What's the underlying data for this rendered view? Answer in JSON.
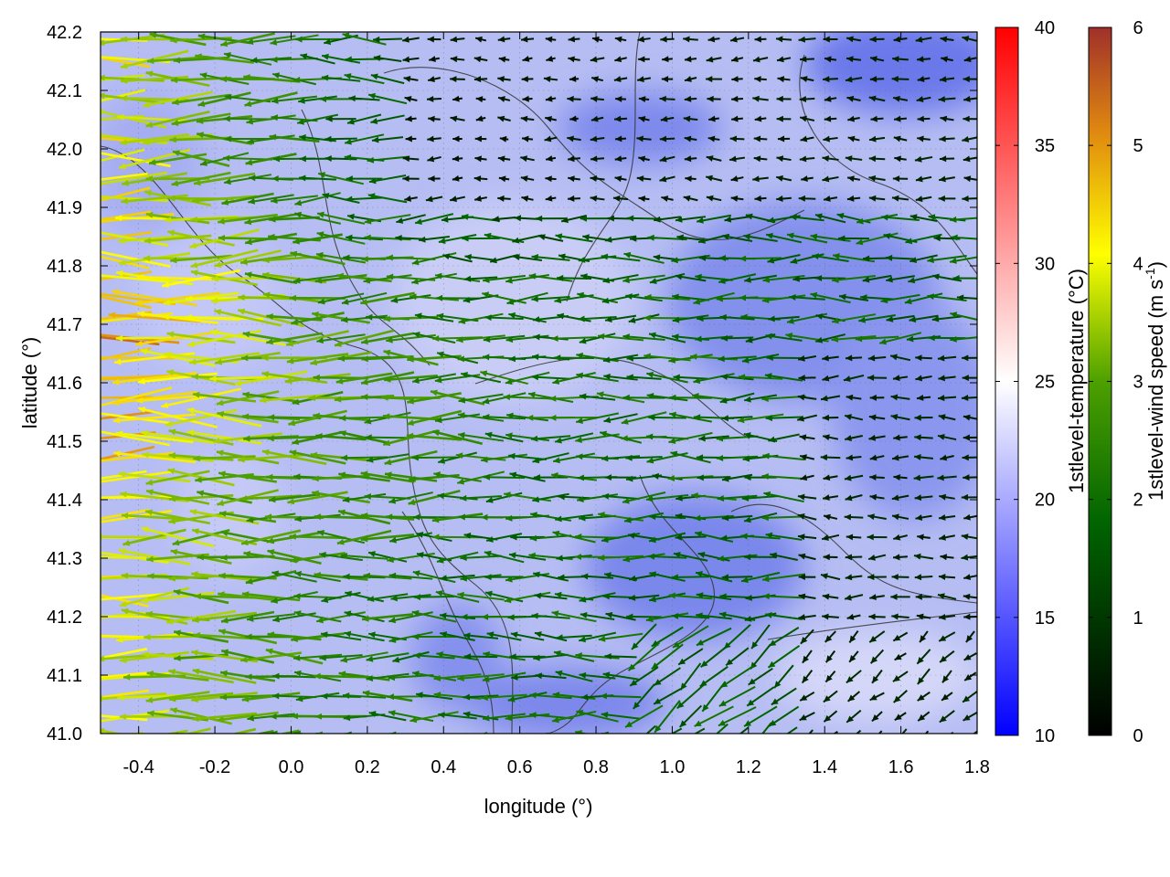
{
  "chart_data": {
    "type": "heatmap",
    "title": "",
    "xlabel": "longitude (°)",
    "ylabel": "latitude (°)",
    "xlim": [
      -0.5,
      1.8
    ],
    "ylim": [
      41.0,
      42.2
    ],
    "x_ticks": [
      "-0.4",
      "-0.2",
      "0.0",
      "0.2",
      "0.4",
      "0.6",
      "0.8",
      "1.0",
      "1.2",
      "1.4",
      "1.6",
      "1.8"
    ],
    "y_ticks": [
      "41.0",
      "41.1",
      "41.2",
      "41.3",
      "41.4",
      "41.5",
      "41.6",
      "41.7",
      "41.8",
      "41.9",
      "42.0",
      "42.1",
      "42.2"
    ],
    "grid": "dotted",
    "layers": [
      {
        "kind": "filled-field",
        "name": "1stlevel-temperature",
        "range": [
          10,
          40
        ],
        "typical_range": [
          15,
          23
        ]
      },
      {
        "kind": "contour-lines",
        "color": "#333333"
      },
      {
        "kind": "vector-field",
        "name": "1stlevel-wind speed",
        "range": [
          0,
          6
        ],
        "prevailing_direction": "westward",
        "max_speed_region": "west"
      }
    ],
    "colorbars": [
      {
        "label": "1stlevel-temperature (°C)",
        "ticks": [
          "10",
          "15",
          "20",
          "25",
          "30",
          "35",
          "40"
        ],
        "colors": [
          "#0000ff",
          "#ffffff",
          "#ff0000"
        ]
      },
      {
        "label": "1stlevel-wind speed (m s",
        "label_sup": "-1",
        "label_end": ")",
        "ticks": [
          "0",
          "1",
          "2",
          "3",
          "4",
          "5",
          "6"
        ],
        "colors": [
          "#000000",
          "#006400",
          "#4da000",
          "#ffff00",
          "#e08a10",
          "#a0302a"
        ]
      }
    ]
  }
}
